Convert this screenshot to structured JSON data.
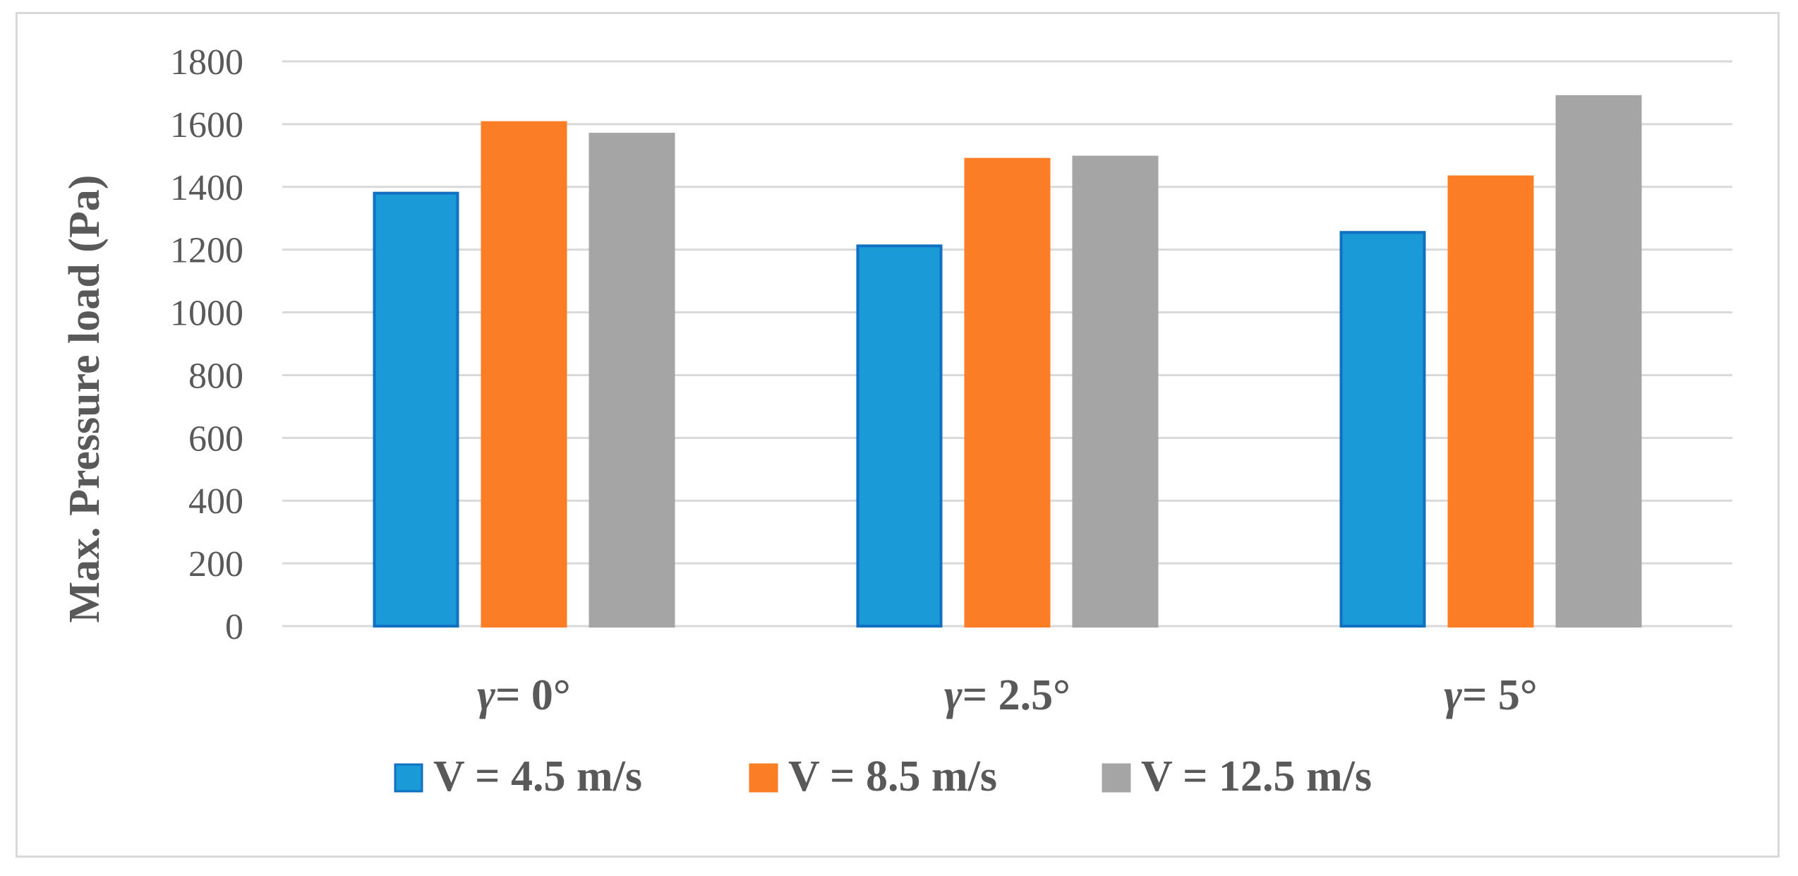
{
  "chart_data": {
    "type": "bar",
    "title": "",
    "xlabel": "",
    "ylabel": "Max. Pressure load (Pa)",
    "categories": [
      "γ= 0°",
      "γ= 2.5°",
      "γ= 5°"
    ],
    "category_parts": [
      {
        "symbol": "γ",
        "rest": "= 0°"
      },
      {
        "symbol": "γ",
        "rest": "= 2.5°"
      },
      {
        "symbol": "γ",
        "rest": "= 5°"
      }
    ],
    "series": [
      {
        "name": "V = 4.5 m/s",
        "values": [
          1380,
          1212,
          1255
        ],
        "color": "#1a9ad6",
        "edge": "#1270c0"
      },
      {
        "name": "V = 8.5 m/s",
        "values": [
          1605,
          1488,
          1432
        ],
        "color": "#fb7e26",
        "edge": "#fb7e26"
      },
      {
        "name": "V = 12.5 m/s",
        "values": [
          1568,
          1495,
          1688
        ],
        "color": "#a5a5a5",
        "edge": "#a5a5a5"
      }
    ],
    "ylim": [
      0,
      1800
    ],
    "yticks": [
      0,
      200,
      400,
      600,
      800,
      1000,
      1200,
      1400,
      1600,
      1800
    ],
    "grid": true,
    "legend_position": "bottom",
    "colors": {
      "gridline": "#d9d9d9",
      "text": "#595959",
      "frame": "#d9d9d9"
    }
  }
}
